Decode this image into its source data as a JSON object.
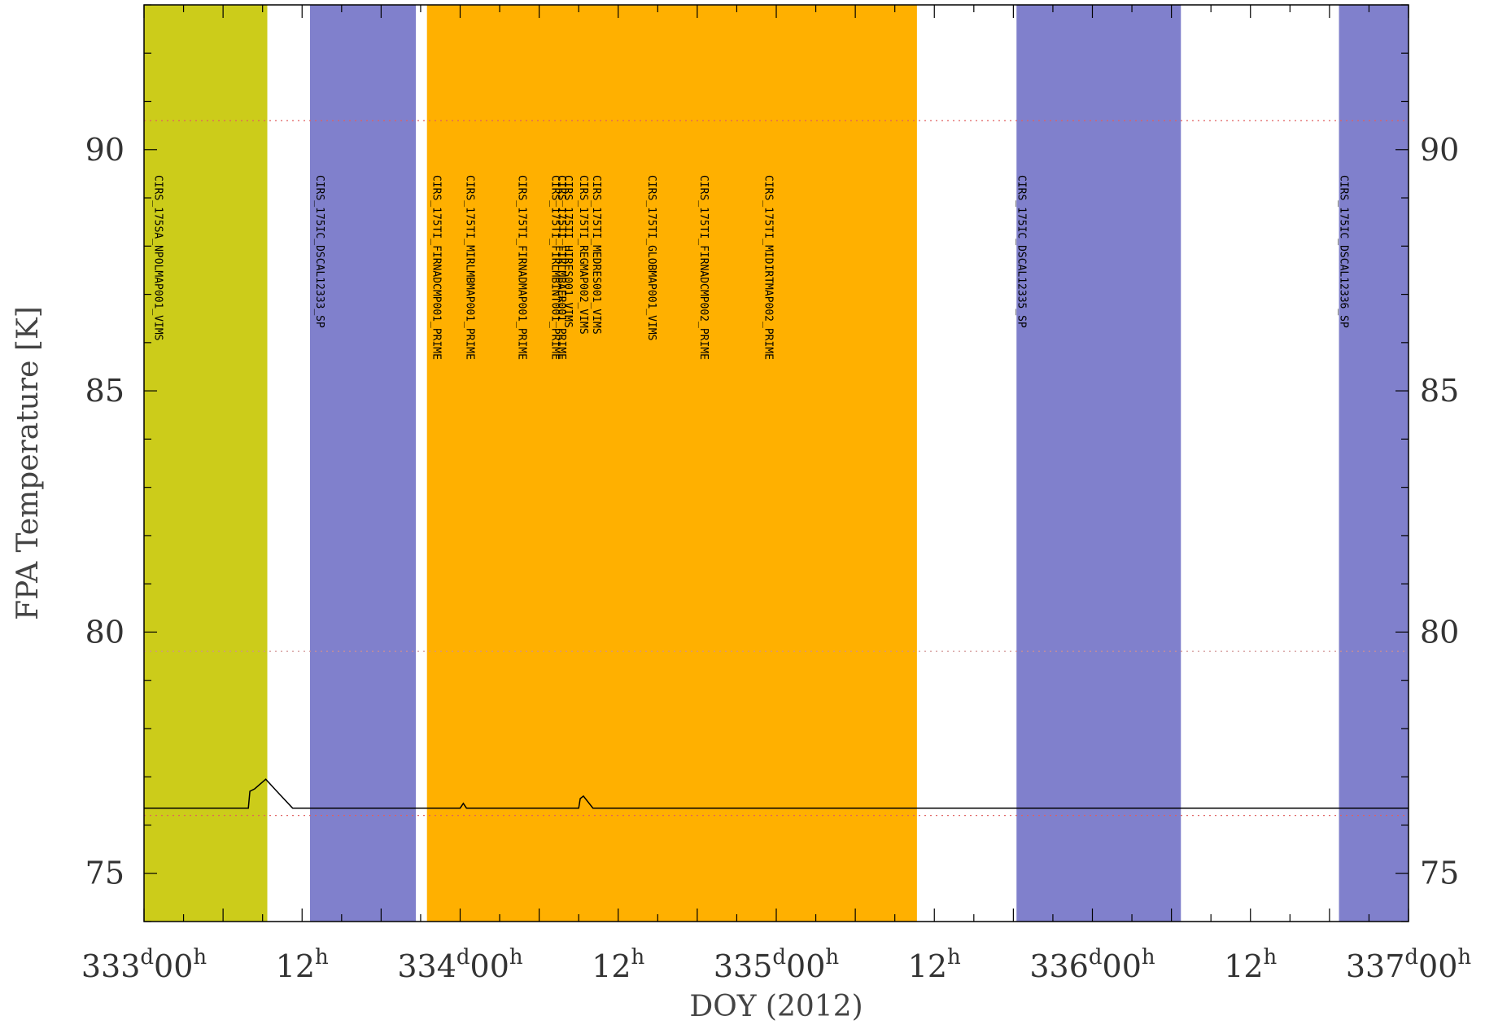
{
  "chart_data": {
    "type": "line",
    "xlabel": "DOY (2012)",
    "ylabel": "FPA Temperature [K]",
    "xlim": [
      333.0,
      337.0
    ],
    "ylim": [
      74.0,
      93.0
    ],
    "grid": false,
    "x_ticks": [
      {
        "x": 333.0,
        "day": "333",
        "hour": "00"
      },
      {
        "x": 333.5,
        "day": "",
        "hour": "12"
      },
      {
        "x": 334.0,
        "day": "334",
        "hour": "00"
      },
      {
        "x": 334.5,
        "day": "",
        "hour": "12"
      },
      {
        "x": 335.0,
        "day": "335",
        "hour": "00"
      },
      {
        "x": 335.5,
        "day": "",
        "hour": "12"
      },
      {
        "x": 336.0,
        "day": "336",
        "hour": "00"
      },
      {
        "x": 336.5,
        "day": "",
        "hour": "12"
      },
      {
        "x": 337.0,
        "day": "337",
        "hour": "00"
      }
    ],
    "x_tick_day_sup": "d",
    "x_tick_hour_sup": "h",
    "y_ticks": [
      75,
      80,
      85,
      90
    ],
    "reference_lines": [
      {
        "y": 90.6,
        "color": "#e06060",
        "style": "dotted"
      },
      {
        "y": 79.6,
        "color": "#d09090",
        "style": "dotted"
      },
      {
        "y": 76.2,
        "color": "#e06060",
        "style": "dotted"
      }
    ],
    "bands": [
      {
        "x0": 333.0,
        "x1": 333.39,
        "color": "#cccc1a"
      },
      {
        "x0": 333.525,
        "x1": 333.86,
        "color": "#8080cc"
      },
      {
        "x0": 333.895,
        "x1": 335.445,
        "color": "#ffb000"
      },
      {
        "x0": 335.76,
        "x1": 336.28,
        "color": "#8080cc"
      },
      {
        "x0": 336.78,
        "x1": 337.0,
        "color": "#8080cc"
      }
    ],
    "observation_labels": [
      {
        "x": 333.025,
        "text": "CIRS_175SA_NPOLMAP001_VIMS"
      },
      {
        "x": 333.535,
        "text": "CIRS_175IC_DSCAL12333_SP"
      },
      {
        "x": 333.905,
        "text": "CIRS_175TI_FIRNADCMP001_PRIME"
      },
      {
        "x": 334.01,
        "text": "CIRS_175TI_MIRLMBMAP001_PRIME"
      },
      {
        "x": 334.175,
        "text": "CIRS_175TI_FIRNADMAP001_PRIME"
      },
      {
        "x": 334.28,
        "text": "CIRS_175TI_FIRLMBINT001_PRIME"
      },
      {
        "x": 334.3,
        "text": "CIRS_175TI_FIRLMBAER001_PRIME"
      },
      {
        "x": 334.32,
        "text": "CIRS_175TI_HIRES001_VIMS"
      },
      {
        "x": 334.37,
        "text": "CIRS_175TI_REGMAP002_VIMS"
      },
      {
        "x": 334.41,
        "text": "CIRS_175TI_MEDRES001_VIMS"
      },
      {
        "x": 334.585,
        "text": "CIRS_175TI_GLOBMAP001_VIMS"
      },
      {
        "x": 334.75,
        "text": "CIRS_175TI_FIRNADCMP002_PRIME"
      },
      {
        "x": 334.955,
        "text": "CIRS_175TI_MIDIRTMAP002_PRIME"
      },
      {
        "x": 335.755,
        "text": "CIRS_175IC_DSCAL12335_SP"
      },
      {
        "x": 336.775,
        "text": "CIRS_175IC_DSCAL12336_SP"
      }
    ],
    "series": [
      {
        "color": "#000000",
        "x": [
          333.0,
          333.33,
          333.335,
          333.35,
          333.385,
          333.42,
          333.47,
          334.0,
          334.01,
          334.02,
          334.03,
          334.375,
          334.38,
          334.39,
          334.42,
          337.0
        ],
        "y": [
          76.35,
          76.35,
          76.7,
          76.75,
          76.95,
          76.7,
          76.35,
          76.35,
          76.45,
          76.35,
          76.35,
          76.35,
          76.55,
          76.6,
          76.35,
          76.35
        ]
      }
    ]
  }
}
